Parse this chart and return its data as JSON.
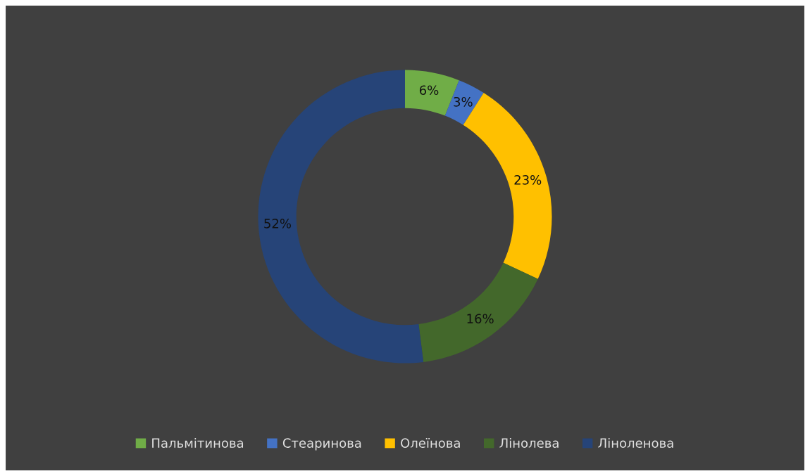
{
  "chart_data": {
    "type": "donut",
    "categories": [
      "Пальмітинова",
      "Стеаринова",
      "Олеїнова",
      "Лінолева",
      "Ліноленова"
    ],
    "values": [
      6,
      3,
      23,
      16,
      52
    ],
    "colors": [
      "#70ad47",
      "#4472c4",
      "#ffc000",
      "#43682b",
      "#264478"
    ],
    "value_labels": [
      "6%",
      "3%",
      "23%",
      "16%",
      "52%"
    ],
    "legend": "bottom"
  }
}
